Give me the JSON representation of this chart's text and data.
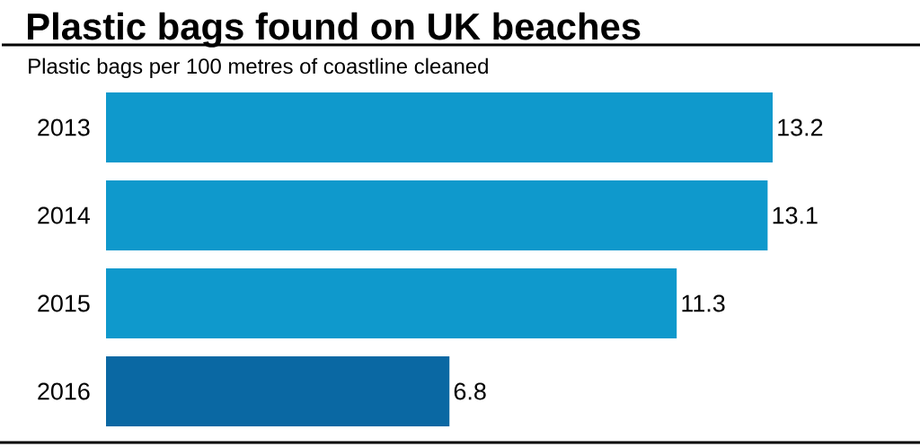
{
  "chart_data": {
    "type": "bar",
    "title": "Plastic bags found on UK beaches",
    "subtitle": "Plastic bags per 100 metres of coastline cleaned",
    "orientation": "horizontal",
    "categories": [
      "2013",
      "2014",
      "2015",
      "2016"
    ],
    "values": [
      13.2,
      13.1,
      11.3,
      6.8
    ],
    "colors": [
      "#0f99cc",
      "#0f99cc",
      "#0f99cc",
      "#0a68a3"
    ],
    "data_labels": true
  }
}
